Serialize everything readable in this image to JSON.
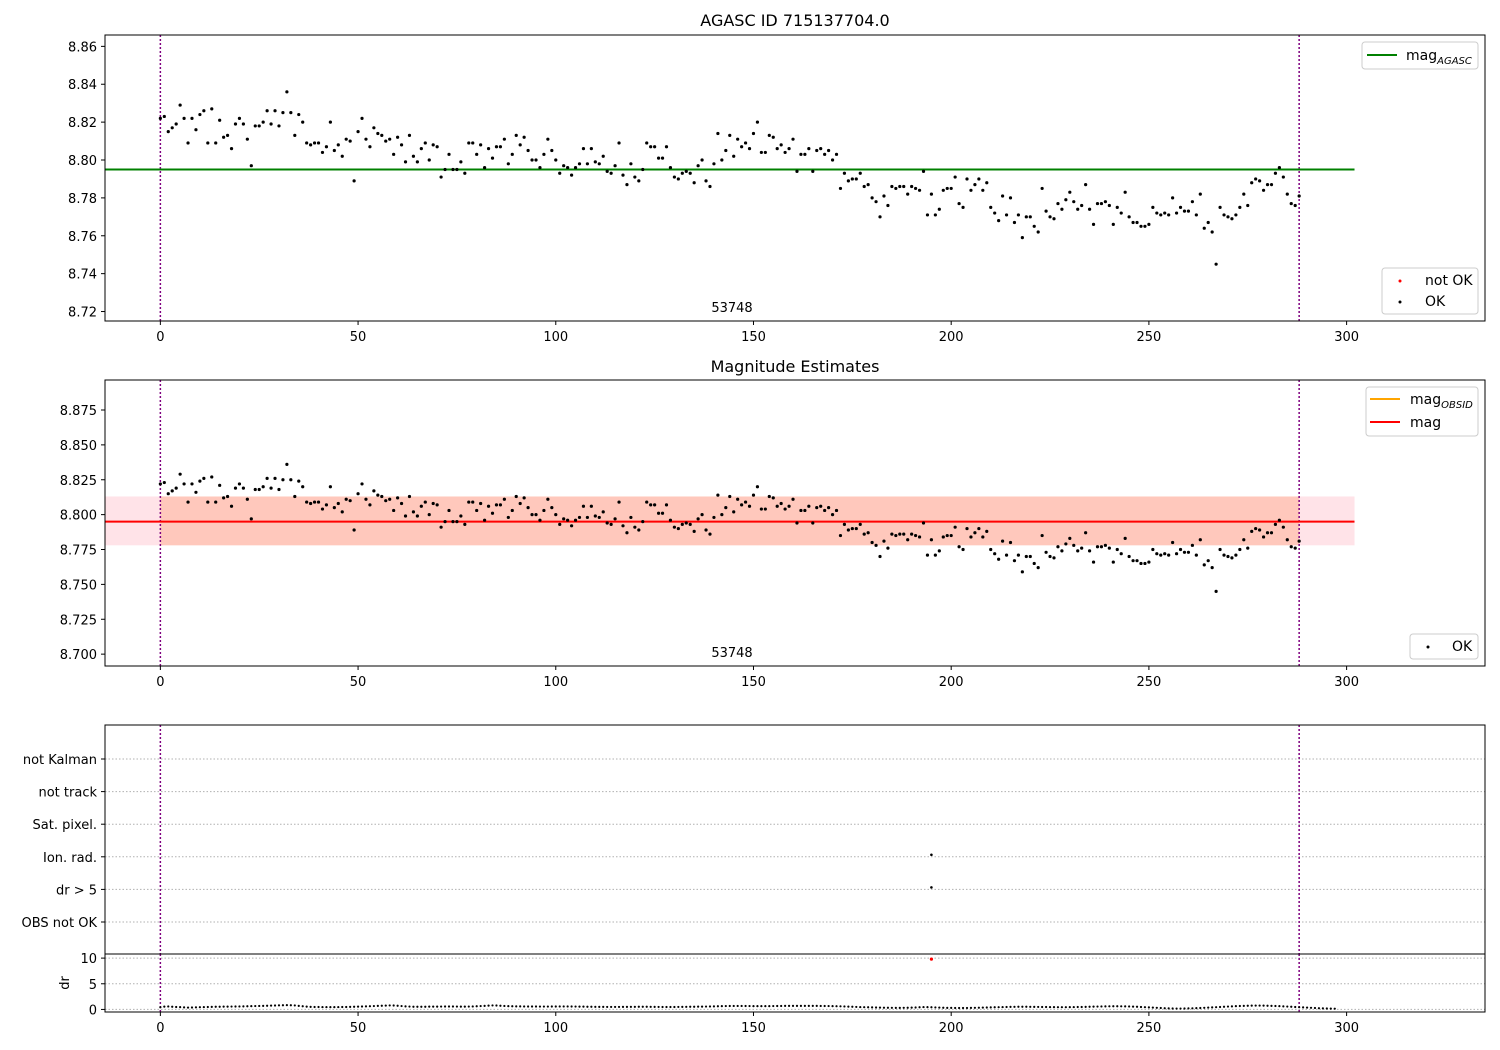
{
  "chart_data": [
    {
      "type": "scatter",
      "title": "AGASC ID 715137704.0",
      "xlim": [
        -14,
        335
      ],
      "ylim": [
        8.715,
        8.866
      ],
      "xticks": [
        "0",
        "50",
        "100",
        "150",
        "200",
        "250",
        "300"
      ],
      "yticks": [
        "8.72",
        "8.74",
        "8.76",
        "8.78",
        "8.80",
        "8.82",
        "8.84",
        "8.86"
      ],
      "annotation": "53748",
      "vlines": [
        0,
        288
      ],
      "hline": {
        "y": 8.795,
        "x_range": [
          -14,
          302
        ],
        "color": "#008000"
      },
      "legend_lines": [
        {
          "label": "mag",
          "sub": "AGASC",
          "color": "#008000"
        }
      ],
      "legend_points": [
        {
          "label": "not OK",
          "color": "#ff0000"
        },
        {
          "label": "OK",
          "color": "#000000"
        }
      ],
      "series": [
        {
          "name": "OK",
          "color": "#000000",
          "source": "mag_points"
        }
      ]
    },
    {
      "type": "scatter",
      "title": "Magnitude Estimates",
      "xlim": [
        -14,
        335
      ],
      "ylim": [
        8.6915,
        8.8965
      ],
      "xticks": [
        "0",
        "50",
        "100",
        "150",
        "200",
        "250",
        "300"
      ],
      "yticks": [
        "8.700",
        "8.725",
        "8.750",
        "8.775",
        "8.800",
        "8.825",
        "8.850",
        "8.875"
      ],
      "annotation": "53748",
      "vlines": [
        0,
        288
      ],
      "band": {
        "y": [
          8.778,
          8.813
        ],
        "x_range": [
          -14,
          302
        ],
        "color": "#ffc0cb"
      },
      "band_inner": {
        "y": [
          8.778,
          8.813
        ],
        "x_range": [
          0,
          288
        ],
        "color": "#ffa07a"
      },
      "hline": {
        "y": 8.795,
        "x_range": [
          -14,
          302
        ],
        "color": "#ff0000"
      },
      "legend_lines": [
        {
          "label": "mag",
          "sub": "OBSID",
          "color": "#ffa500"
        },
        {
          "label": "mag",
          "sub": "",
          "color": "#ff0000"
        }
      ],
      "legend_points": [
        {
          "label": "OK",
          "color": "#000000"
        }
      ],
      "series": [
        {
          "name": "OK",
          "color": "#000000",
          "source": "mag_points"
        }
      ]
    },
    {
      "type": "scatter",
      "xlim": [
        -14,
        335
      ],
      "categories": [
        "not Kalman",
        "not track",
        "Sat. pixel.",
        "Ion. rad.",
        "dr > 5",
        "OBS not OK"
      ],
      "flag_points": [
        {
          "x": 195,
          "category": "Ion. rad."
        },
        {
          "x": 195,
          "category": "dr > 5"
        }
      ],
      "vlines": [
        0,
        288
      ]
    },
    {
      "type": "scatter",
      "xlim": [
        -14,
        335
      ],
      "ylim": [
        -0.5,
        10.8
      ],
      "ylabel": "dr",
      "xticks": [
        "0",
        "50",
        "100",
        "150",
        "200",
        "250",
        "300"
      ],
      "yticks": [
        "0",
        "5",
        "10"
      ],
      "vlines": [
        0,
        288
      ],
      "red_points": [
        {
          "x": 195,
          "y": 9.8
        }
      ],
      "dr_points": [
        0.42,
        0.55,
        0.58,
        0.52,
        0.47,
        0.45,
        0.4,
        0.36,
        0.38,
        0.41,
        0.44,
        0.46,
        0.48,
        0.5,
        0.52,
        0.53,
        0.54,
        0.55,
        0.56,
        0.57,
        0.58,
        0.6,
        0.62,
        0.64,
        0.66,
        0.68,
        0.7,
        0.72,
        0.75,
        0.77,
        0.8,
        0.82,
        0.84,
        0.82,
        0.78,
        0.7,
        0.62,
        0.55,
        0.5,
        0.48,
        0.47,
        0.46,
        0.46,
        0.45,
        0.45,
        0.46,
        0.47,
        0.48,
        0.5,
        0.52,
        0.55,
        0.57,
        0.6,
        0.63,
        0.66,
        0.69,
        0.72,
        0.75,
        0.78,
        0.76,
        0.72,
        0.66,
        0.6,
        0.56,
        0.53,
        0.52,
        0.52,
        0.53,
        0.54,
        0.55,
        0.55,
        0.56,
        0.57,
        0.57,
        0.57,
        0.56,
        0.55,
        0.55,
        0.56,
        0.58,
        0.62,
        0.66,
        0.7,
        0.74,
        0.78,
        0.76,
        0.72,
        0.68,
        0.64,
        0.62,
        0.6,
        0.59,
        0.58,
        0.57,
        0.57,
        0.57,
        0.56,
        0.56,
        0.56,
        0.57,
        0.57,
        0.58,
        0.58,
        0.58,
        0.57,
        0.56,
        0.55,
        0.54,
        0.53,
        0.52,
        0.51,
        0.5,
        0.5,
        0.49,
        0.49,
        0.49,
        0.49,
        0.5,
        0.5,
        0.51,
        0.51,
        0.52,
        0.52,
        0.52,
        0.51,
        0.5,
        0.49,
        0.48,
        0.48,
        0.48,
        0.48,
        0.49,
        0.5,
        0.51,
        0.52,
        0.53,
        0.54,
        0.55,
        0.56,
        0.58,
        0.6,
        0.62,
        0.64,
        0.66,
        0.67,
        0.68,
        0.68,
        0.68,
        0.67,
        0.66,
        0.65,
        0.64,
        0.64,
        0.64,
        0.65,
        0.66,
        0.67,
        0.68,
        0.69,
        0.7,
        0.7,
        0.7,
        0.7,
        0.7,
        0.7,
        0.7,
        0.69,
        0.68,
        0.67,
        0.66,
        0.65,
        0.63,
        0.61,
        0.58,
        0.55,
        0.52,
        0.49,
        0.46,
        0.44,
        0.42,
        0.4,
        0.38,
        0.36,
        0.34,
        0.33,
        0.32,
        0.31,
        0.31,
        0.32,
        0.33,
        0.35,
        0.38,
        0.42,
        0.46,
        0.45,
        0.42,
        0.39,
        0.36,
        0.33,
        0.31,
        0.3,
        0.29,
        0.28,
        0.28,
        0.29,
        0.3,
        0.32,
        0.34,
        0.36,
        0.38,
        0.4,
        0.42,
        0.44,
        0.46,
        0.48,
        0.5,
        0.51,
        0.52,
        0.52,
        0.52,
        0.51,
        0.5,
        0.49,
        0.48,
        0.47,
        0.46,
        0.45,
        0.44,
        0.44,
        0.44,
        0.45,
        0.46,
        0.47,
        0.48,
        0.5,
        0.52,
        0.54,
        0.56,
        0.58,
        0.6,
        0.61,
        0.62,
        0.62,
        0.61,
        0.6,
        0.58,
        0.55,
        0.52,
        0.48,
        0.44,
        0.4,
        0.36,
        0.32,
        0.28,
        0.24,
        0.2,
        0.18,
        0.17,
        0.17,
        0.18,
        0.2,
        0.22,
        0.25,
        0.28,
        0.32,
        0.36,
        0.4,
        0.44,
        0.48,
        0.52,
        0.56,
        0.6,
        0.64,
        0.67,
        0.7,
        0.72,
        0.74,
        0.75,
        0.75,
        0.74,
        0.72,
        0.7,
        0.67,
        0.64,
        0.6,
        0.56,
        0.52,
        0.48,
        0.44,
        0.4,
        0.36,
        0.32,
        0.28,
        0.24,
        0.2,
        0.18,
        0.16,
        0.15
      ],
      "dr_dx": 1
    }
  ],
  "mag_points": [
    [
      0,
      8.822
    ],
    [
      1,
      8.823
    ],
    [
      2,
      8.815
    ],
    [
      3,
      8.817
    ],
    [
      4,
      8.819
    ],
    [
      5,
      8.829
    ],
    [
      6,
      8.822
    ],
    [
      7,
      8.809
    ],
    [
      8,
      8.822
    ],
    [
      9,
      8.816
    ],
    [
      10,
      8.824
    ],
    [
      11,
      8.826
    ],
    [
      12,
      8.809
    ],
    [
      13,
      8.827
    ],
    [
      14,
      8.809
    ],
    [
      15,
      8.821
    ],
    [
      16,
      8.812
    ],
    [
      17,
      8.813
    ],
    [
      18,
      8.806
    ],
    [
      19,
      8.819
    ],
    [
      20,
      8.822
    ],
    [
      21,
      8.819
    ],
    [
      22,
      8.811
    ],
    [
      23,
      8.797
    ],
    [
      24,
      8.818
    ],
    [
      25,
      8.818
    ],
    [
      26,
      8.82
    ],
    [
      27,
      8.826
    ],
    [
      28,
      8.819
    ],
    [
      29,
      8.826
    ],
    [
      30,
      8.818
    ],
    [
      31,
      8.825
    ],
    [
      32,
      8.836
    ],
    [
      33,
      8.825
    ],
    [
      34,
      8.813
    ],
    [
      35,
      8.824
    ],
    [
      36,
      8.82
    ],
    [
      37,
      8.809
    ],
    [
      38,
      8.808
    ],
    [
      39,
      8.809
    ],
    [
      40,
      8.809
    ],
    [
      41,
      8.804
    ],
    [
      42,
      8.807
    ],
    [
      43,
      8.82
    ],
    [
      44,
      8.805
    ],
    [
      45,
      8.808
    ],
    [
      46,
      8.802
    ],
    [
      47,
      8.811
    ],
    [
      48,
      8.81
    ],
    [
      49,
      8.789
    ],
    [
      50,
      8.815
    ],
    [
      51,
      8.822
    ],
    [
      52,
      8.811
    ],
    [
      53,
      8.807
    ],
    [
      54,
      8.817
    ],
    [
      55,
      8.814
    ],
    [
      56,
      8.813
    ],
    [
      57,
      8.81
    ],
    [
      58,
      8.811
    ],
    [
      59,
      8.803
    ],
    [
      60,
      8.812
    ],
    [
      61,
      8.808
    ],
    [
      62,
      8.799
    ],
    [
      63,
      8.813
    ],
    [
      64,
      8.802
    ],
    [
      65,
      8.799
    ],
    [
      66,
      8.806
    ],
    [
      67,
      8.809
    ],
    [
      68,
      8.8
    ],
    [
      69,
      8.808
    ],
    [
      70,
      8.807
    ],
    [
      71,
      8.791
    ],
    [
      72,
      8.795
    ],
    [
      73,
      8.803
    ],
    [
      74,
      8.795
    ],
    [
      75,
      8.795
    ],
    [
      76,
      8.799
    ],
    [
      77,
      8.793
    ],
    [
      78,
      8.809
    ],
    [
      79,
      8.809
    ],
    [
      80,
      8.803
    ],
    [
      81,
      8.808
    ],
    [
      82,
      8.796
    ],
    [
      83,
      8.806
    ],
    [
      84,
      8.801
    ],
    [
      85,
      8.807
    ],
    [
      86,
      8.807
    ],
    [
      87,
      8.811
    ],
    [
      88,
      8.798
    ],
    [
      89,
      8.803
    ],
    [
      90,
      8.813
    ],
    [
      91,
      8.808
    ],
    [
      92,
      8.812
    ],
    [
      93,
      8.805
    ],
    [
      94,
      8.8
    ],
    [
      95,
      8.8
    ],
    [
      96,
      8.796
    ],
    [
      97,
      8.803
    ],
    [
      98,
      8.811
    ],
    [
      99,
      8.805
    ],
    [
      100,
      8.8
    ],
    [
      101,
      8.793
    ],
    [
      102,
      8.797
    ],
    [
      103,
      8.796
    ],
    [
      104,
      8.792
    ],
    [
      105,
      8.796
    ],
    [
      106,
      8.798
    ],
    [
      107,
      8.806
    ],
    [
      108,
      8.798
    ],
    [
      109,
      8.806
    ],
    [
      110,
      8.799
    ],
    [
      111,
      8.798
    ],
    [
      112,
      8.802
    ],
    [
      113,
      8.794
    ],
    [
      114,
      8.793
    ],
    [
      115,
      8.797
    ],
    [
      116,
      8.809
    ],
    [
      117,
      8.792
    ],
    [
      118,
      8.787
    ],
    [
      119,
      8.798
    ],
    [
      120,
      8.791
    ],
    [
      121,
      8.789
    ],
    [
      122,
      8.795
    ],
    [
      123,
      8.809
    ],
    [
      124,
      8.807
    ],
    [
      125,
      8.807
    ],
    [
      126,
      8.801
    ],
    [
      127,
      8.801
    ],
    [
      128,
      8.807
    ],
    [
      129,
      8.796
    ],
    [
      130,
      8.791
    ],
    [
      131,
      8.79
    ],
    [
      132,
      8.793
    ],
    [
      133,
      8.794
    ],
    [
      134,
      8.793
    ],
    [
      135,
      8.788
    ],
    [
      136,
      8.797
    ],
    [
      137,
      8.8
    ],
    [
      138,
      8.789
    ],
    [
      139,
      8.786
    ],
    [
      140,
      8.798
    ],
    [
      141,
      8.814
    ],
    [
      142,
      8.8
    ],
    [
      143,
      8.805
    ],
    [
      144,
      8.813
    ],
    [
      145,
      8.802
    ],
    [
      146,
      8.811
    ],
    [
      147,
      8.807
    ],
    [
      148,
      8.809
    ],
    [
      149,
      8.806
    ],
    [
      150,
      8.814
    ],
    [
      151,
      8.82
    ],
    [
      152,
      8.804
    ],
    [
      153,
      8.804
    ],
    [
      154,
      8.813
    ],
    [
      155,
      8.812
    ],
    [
      156,
      8.806
    ],
    [
      157,
      8.808
    ],
    [
      158,
      8.804
    ],
    [
      159,
      8.806
    ],
    [
      160,
      8.811
    ],
    [
      161,
      8.794
    ],
    [
      162,
      8.803
    ],
    [
      163,
      8.803
    ],
    [
      164,
      8.806
    ],
    [
      165,
      8.794
    ],
    [
      166,
      8.805
    ],
    [
      167,
      8.806
    ],
    [
      168,
      8.803
    ],
    [
      169,
      8.805
    ],
    [
      170,
      8.8
    ],
    [
      171,
      8.803
    ],
    [
      172,
      8.785
    ],
    [
      173,
      8.793
    ],
    [
      174,
      8.789
    ],
    [
      175,
      8.79
    ],
    [
      176,
      8.79
    ],
    [
      177,
      8.793
    ],
    [
      178,
      8.786
    ],
    [
      179,
      8.787
    ],
    [
      180,
      8.78
    ],
    [
      181,
      8.778
    ],
    [
      182,
      8.77
    ],
    [
      183,
      8.781
    ],
    [
      184,
      8.776
    ],
    [
      185,
      8.786
    ],
    [
      186,
      8.785
    ],
    [
      187,
      8.786
    ],
    [
      188,
      8.786
    ],
    [
      189,
      8.782
    ],
    [
      190,
      8.786
    ],
    [
      191,
      8.785
    ],
    [
      192,
      8.784
    ],
    [
      193,
      8.794
    ],
    [
      194,
      8.771
    ],
    [
      195,
      8.782
    ],
    [
      196,
      8.771
    ],
    [
      197,
      8.774
    ],
    [
      198,
      8.784
    ],
    [
      199,
      8.785
    ],
    [
      200,
      8.785
    ],
    [
      201,
      8.791
    ],
    [
      202,
      8.777
    ],
    [
      203,
      8.775
    ],
    [
      204,
      8.79
    ],
    [
      205,
      8.784
    ],
    [
      206,
      8.787
    ],
    [
      207,
      8.79
    ],
    [
      208,
      8.784
    ],
    [
      209,
      8.788
    ],
    [
      210,
      8.775
    ],
    [
      211,
      8.772
    ],
    [
      212,
      8.768
    ],
    [
      213,
      8.781
    ],
    [
      214,
      8.771
    ],
    [
      215,
      8.78
    ],
    [
      216,
      8.767
    ],
    [
      217,
      8.771
    ],
    [
      218,
      8.759
    ],
    [
      219,
      8.77
    ],
    [
      220,
      8.77
    ],
    [
      221,
      8.765
    ],
    [
      222,
      8.762
    ],
    [
      223,
      8.785
    ],
    [
      224,
      8.773
    ],
    [
      225,
      8.77
    ],
    [
      226,
      8.769
    ],
    [
      227,
      8.777
    ],
    [
      228,
      8.774
    ],
    [
      229,
      8.779
    ],
    [
      230,
      8.783
    ],
    [
      231,
      8.778
    ],
    [
      232,
      8.774
    ],
    [
      233,
      8.776
    ],
    [
      234,
      8.787
    ],
    [
      235,
      8.774
    ],
    [
      236,
      8.766
    ],
    [
      237,
      8.777
    ],
    [
      238,
      8.777
    ],
    [
      239,
      8.778
    ],
    [
      240,
      8.776
    ],
    [
      241,
      8.766
    ],
    [
      242,
      8.775
    ],
    [
      243,
      8.772
    ],
    [
      244,
      8.783
    ],
    [
      245,
      8.77
    ],
    [
      246,
      8.767
    ],
    [
      247,
      8.767
    ],
    [
      248,
      8.765
    ],
    [
      249,
      8.765
    ],
    [
      250,
      8.766
    ],
    [
      251,
      8.775
    ],
    [
      252,
      8.772
    ],
    [
      253,
      8.771
    ],
    [
      254,
      8.772
    ],
    [
      255,
      8.771
    ],
    [
      256,
      8.78
    ],
    [
      257,
      8.772
    ],
    [
      258,
      8.775
    ],
    [
      259,
      8.773
    ],
    [
      260,
      8.773
    ],
    [
      261,
      8.778
    ],
    [
      262,
      8.771
    ],
    [
      263,
      8.782
    ],
    [
      264,
      8.764
    ],
    [
      265,
      8.767
    ],
    [
      266,
      8.762
    ],
    [
      267,
      8.745
    ],
    [
      268,
      8.775
    ],
    [
      269,
      8.771
    ],
    [
      270,
      8.77
    ],
    [
      271,
      8.769
    ],
    [
      272,
      8.771
    ],
    [
      273,
      8.775
    ],
    [
      274,
      8.782
    ],
    [
      275,
      8.776
    ],
    [
      276,
      8.788
    ],
    [
      277,
      8.79
    ],
    [
      278,
      8.789
    ],
    [
      279,
      8.784
    ],
    [
      280,
      8.787
    ],
    [
      281,
      8.787
    ],
    [
      282,
      8.793
    ],
    [
      283,
      8.796
    ],
    [
      284,
      8.791
    ],
    [
      285,
      8.782
    ],
    [
      286,
      8.777
    ],
    [
      287,
      8.776
    ],
    [
      288,
      8.781
    ]
  ]
}
